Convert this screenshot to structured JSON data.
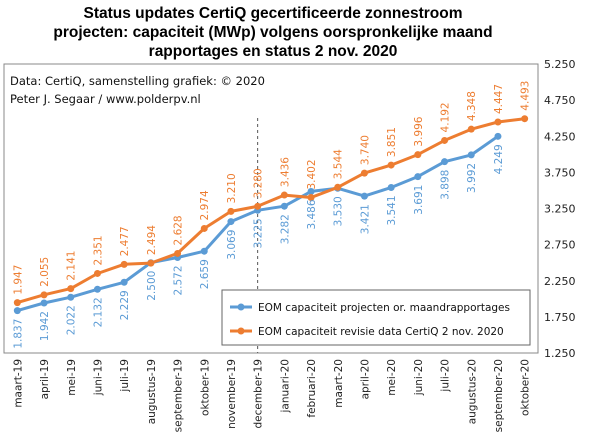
{
  "chart_data": {
    "type": "line",
    "title_lines": [
      "Status updates CertiQ gecertificeerde  zonnestroom",
      "projecten: capaciteit (MWp) volgens oorspronkelijke  maand",
      "rapportages en status 2 nov. 2020"
    ],
    "source_lines": [
      "Data: CertiQ, samenstelling grafiek: © 2020",
      "Peter J. Segaar / www.polderpv.nl"
    ],
    "categories": [
      "maart-19",
      "april-19",
      "mei-19",
      "juni-19",
      "juli-19",
      "augustus-19",
      "september-19",
      "oktober-19",
      "november-19",
      "december-19",
      "januari-20",
      "februari-20",
      "maart-20",
      "april-20",
      "mei-20",
      "juni-20",
      "juli-20",
      "augustus-20",
      "september-20",
      "oktober-20"
    ],
    "ylim": [
      1.25,
      5.25
    ],
    "yticks": [
      "1.250",
      "1.750",
      "2.250",
      "2.750",
      "3.250",
      "3.750",
      "4.250",
      "4.750",
      "5.250"
    ],
    "y_axis_side": "right",
    "grid": false,
    "legend_position": "bottom-right",
    "series": [
      {
        "name": "EOM capaciteit projecten or. maandrapportages",
        "color": "#5b9bd5",
        "values": [
          1.837,
          1.942,
          2.022,
          2.132,
          2.229,
          2.5,
          2.572,
          2.659,
          3.069,
          3.225,
          3.282,
          3.486,
          3.53,
          3.421,
          3.541,
          3.691,
          3.898,
          3.992,
          4.249,
          null
        ],
        "labels": [
          "1.837",
          "1.942",
          "2.022",
          "2.132",
          "2.229",
          "2.500",
          "2.572",
          "2.659",
          "3.069",
          "3.225",
          "3.282",
          "3.486",
          "3.530",
          "3.421",
          "3.541",
          "3.691",
          "3.898",
          "3.992",
          "4.249",
          ""
        ]
      },
      {
        "name": "EOM capaciteit revisie data CertiQ 2 nov. 2020",
        "color": "#ed7d31",
        "values": [
          1.947,
          2.055,
          2.141,
          2.351,
          2.477,
          2.494,
          2.628,
          2.974,
          3.21,
          3.28,
          3.436,
          3.402,
          3.544,
          3.74,
          3.851,
          3.996,
          4.192,
          4.348,
          4.447,
          4.493
        ],
        "labels": [
          "1.947",
          "2.055",
          "2.141",
          "2.351",
          "2.477",
          "2.494",
          "2.628",
          "2.974",
          "3.210",
          "3.280",
          "3.436",
          "3.402",
          "3.544",
          "3.740",
          "3.851",
          "3.996",
          "4.192",
          "4.348",
          "4.447",
          "4.493"
        ]
      }
    ],
    "dashed_vertical_marker_after": "december-19"
  }
}
